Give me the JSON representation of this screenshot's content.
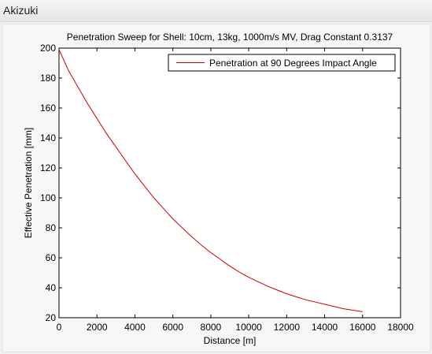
{
  "window": {
    "title": "Akizuki"
  },
  "chart_data": {
    "type": "line",
    "title": "Penetration Sweep for Shell: 10cm, 13kg, 1000m/s MV, Drag Constant 0.3137",
    "xlabel": "Distance [m]",
    "ylabel": "Effective Penetration [mm]",
    "xlim": [
      0,
      18000
    ],
    "ylim": [
      20,
      200
    ],
    "xticks": [
      0,
      2000,
      4000,
      6000,
      8000,
      10000,
      12000,
      14000,
      16000,
      18000
    ],
    "yticks": [
      20,
      40,
      60,
      80,
      100,
      120,
      140,
      160,
      180,
      200
    ],
    "grid": false,
    "legend_position": "top-right",
    "series": [
      {
        "name": "Penetration at 90 Degrees Impact Angle",
        "color": "#cc0000",
        "x": [
          0,
          500,
          1000,
          1500,
          2000,
          2500,
          3000,
          3500,
          4000,
          4500,
          5000,
          5500,
          6000,
          6500,
          7000,
          7500,
          8000,
          8500,
          9000,
          9500,
          10000,
          10500,
          11000,
          11500,
          12000,
          12500,
          13000,
          13500,
          14000,
          14500,
          15000,
          15500,
          16000
        ],
        "y": [
          199,
          185,
          174,
          163,
          153,
          143,
          134,
          125,
          116,
          108,
          100,
          93,
          86,
          80,
          74,
          68.5,
          63.5,
          59,
          54.5,
          50.5,
          47,
          44,
          41,
          38.5,
          36,
          34,
          32,
          30.5,
          29,
          27.5,
          26,
          25,
          24
        ]
      }
    ]
  }
}
